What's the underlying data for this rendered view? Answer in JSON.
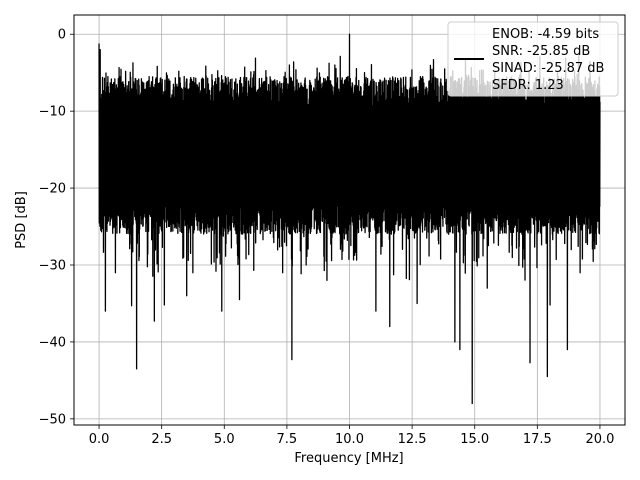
{
  "chart_data": {
    "type": "line",
    "title": "",
    "xlabel": "Frequency [MHz]",
    "ylabel": "PSD [dB]",
    "xlim": [
      -1.0,
      21.0
    ],
    "ylim": [
      -50.8,
      2.5
    ],
    "xticks": [
      0.0,
      2.5,
      5.0,
      7.5,
      10.0,
      12.5,
      15.0,
      17.5,
      20.0
    ],
    "xtick_labels": [
      "0.0",
      "2.5",
      "5.0",
      "7.5",
      "10.0",
      "12.5",
      "15.0",
      "17.5",
      "20.0"
    ],
    "yticks": [
      0,
      -10,
      -20,
      -30,
      -40,
      -50
    ],
    "ytick_labels": [
      "0",
      "−10",
      "−20",
      "−30",
      "−40",
      "−50"
    ],
    "grid": true,
    "legend_position": "top-right",
    "legend": [
      "ENOB: -4.59 bits",
      "SNR: -25.85 dB",
      "SINAD: -25.87 dB",
      "SFDR: 1.23"
    ],
    "series": [
      {
        "color": "#000000",
        "x_range": [
          0.0,
          20.0
        ],
        "typical_upper": -7.5,
        "typical_lower": -22.0,
        "peaks": [
          {
            "x": 0.0,
            "y": -1.2
          },
          {
            "x": 0.05,
            "y": -2.0
          },
          {
            "x": 3.4,
            "y": -5.5
          },
          {
            "x": 7.6,
            "y": -4.0
          },
          {
            "x": 10.0,
            "y": 0.0
          },
          {
            "x": 10.6,
            "y": -5.0
          },
          {
            "x": 13.8,
            "y": -4.5
          },
          {
            "x": 15.8,
            "y": -5.0
          },
          {
            "x": 19.1,
            "y": -5.2
          }
        ],
        "dips": [
          {
            "x": 0.25,
            "y": -36.0
          },
          {
            "x": 0.65,
            "y": -31.0
          },
          {
            "x": 1.3,
            "y": -35.3
          },
          {
            "x": 1.5,
            "y": -43.5
          },
          {
            "x": 2.2,
            "y": -37.3
          },
          {
            "x": 2.6,
            "y": -35.2
          },
          {
            "x": 3.5,
            "y": -34.0
          },
          {
            "x": 4.9,
            "y": -36.0
          },
          {
            "x": 5.6,
            "y": -34.5
          },
          {
            "x": 7.7,
            "y": -42.3
          },
          {
            "x": 9.1,
            "y": -32.0
          },
          {
            "x": 11.05,
            "y": -36.0
          },
          {
            "x": 11.6,
            "y": -38.0
          },
          {
            "x": 12.7,
            "y": -35.0
          },
          {
            "x": 14.2,
            "y": -40.0
          },
          {
            "x": 14.4,
            "y": -41.0
          },
          {
            "x": 14.9,
            "y": -48.0
          },
          {
            "x": 15.5,
            "y": -33.0
          },
          {
            "x": 17.2,
            "y": -42.7
          },
          {
            "x": 17.9,
            "y": -44.5
          },
          {
            "x": 18.0,
            "y": -35.2
          },
          {
            "x": 18.7,
            "y": -41.0
          },
          {
            "x": 19.2,
            "y": -31.0
          }
        ]
      }
    ]
  }
}
